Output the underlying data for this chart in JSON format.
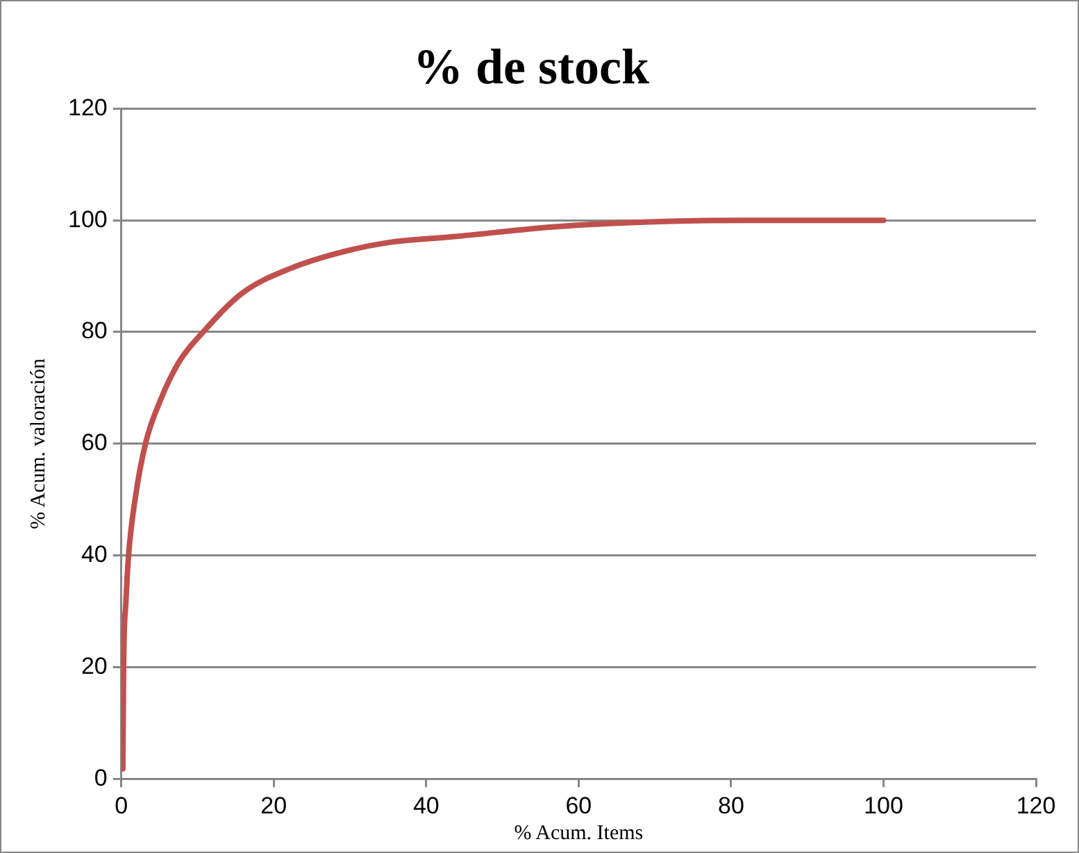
{
  "chart_data": {
    "type": "line",
    "title": "% de stock",
    "xlabel": "% Acum. Items",
    "ylabel": "% Acum. valoración",
    "series": [
      {
        "color": "#c0504d",
        "x": [
          0.2,
          0.3,
          0.6,
          0.95,
          1.8,
          3.2,
          5.1,
          7.6,
          10.8,
          15.9,
          22.2,
          28.6,
          34.9,
          43.8,
          56.5,
          69.2,
          81.9,
          100
        ],
        "values": [
          1.8,
          20.2,
          31.6,
          40,
          50,
          60.2,
          67.7,
          74.7,
          80.1,
          87,
          91.4,
          94.2,
          96,
          97.1,
          98.8,
          99.7,
          100,
          100
        ]
      }
    ],
    "xlim": [
      0,
      120
    ],
    "xticks": [
      0,
      20,
      40,
      60,
      80,
      100,
      120
    ],
    "ylim": [
      0,
      120
    ],
    "yticks": [
      0,
      20,
      40,
      60,
      80,
      100,
      120
    ],
    "grid": "y",
    "legend": false,
    "marker": "none",
    "line_style": "solid"
  }
}
